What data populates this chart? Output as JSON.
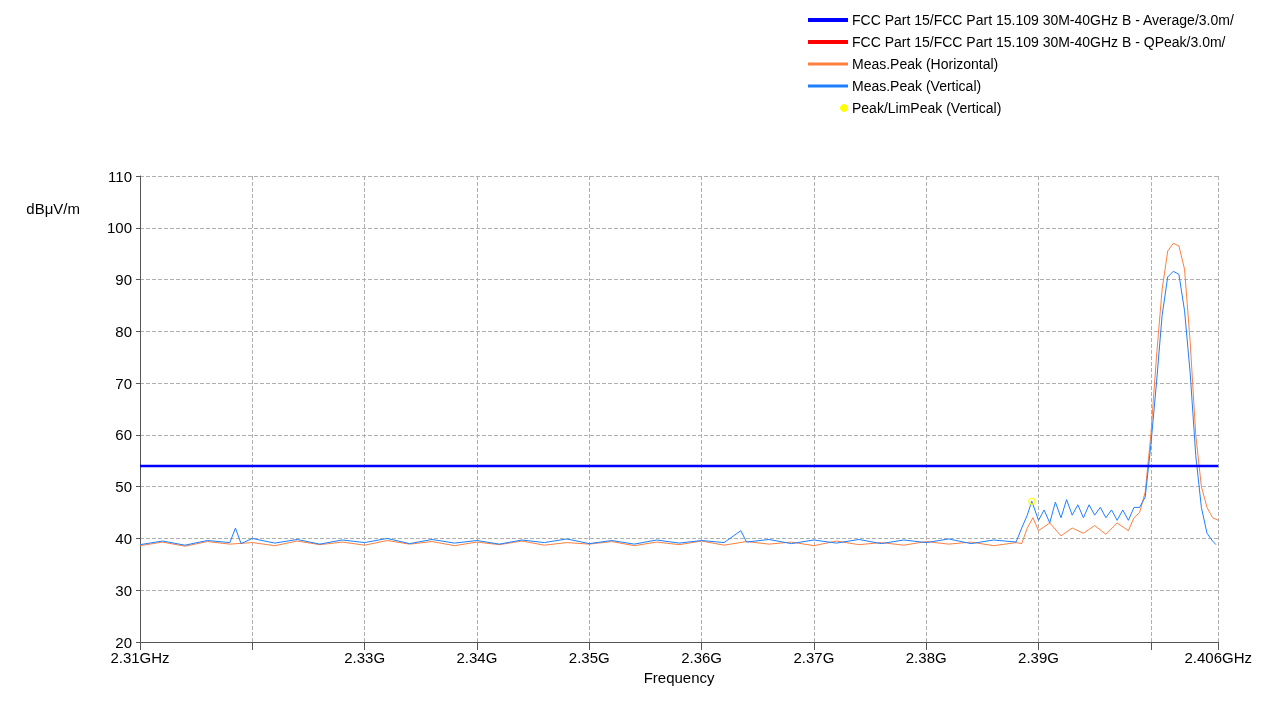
{
  "chart_data": {
    "type": "line",
    "xlabel": "Frequency",
    "ylabel": "dBμV/m",
    "xlim": [
      2.31,
      2.406
    ],
    "ylim": [
      20,
      110
    ],
    "xticks": [
      {
        "value": 2.31,
        "label": "2.31GHz"
      },
      {
        "value": 2.32,
        "label": null
      },
      {
        "value": 2.33,
        "label": "2.33G"
      },
      {
        "value": 2.34,
        "label": "2.34G"
      },
      {
        "value": 2.35,
        "label": "2.35G"
      },
      {
        "value": 2.36,
        "label": "2.36G"
      },
      {
        "value": 2.37,
        "label": "2.37G"
      },
      {
        "value": 2.38,
        "label": "2.38G"
      },
      {
        "value": 2.39,
        "label": "2.39G"
      },
      {
        "value": 2.4,
        "label": null
      },
      {
        "value": 2.406,
        "label": "2.406GHz"
      }
    ],
    "yticks": [
      20,
      30,
      40,
      50,
      60,
      70,
      80,
      90,
      100,
      110
    ],
    "grid": true,
    "legend": "top right",
    "marker": "none",
    "line_style": "solid",
    "series": [
      {
        "name": "FCC Part 15/FCC Part 15.109 30M-40GHz B - Average/3.0m/",
        "color": "#0000ff",
        "x": [
          2.31,
          2.406
        ],
        "values": [
          54,
          54
        ]
      },
      {
        "name": "FCC Part 15/FCC Part 15.109 30M-40GHz B - QPeak/3.0m/",
        "color": "#ff0000"
      },
      {
        "name": "Meas.Peak (Horizontal)",
        "color": "#ff7f3f",
        "x": [
          2.31,
          2.312,
          2.314,
          2.316,
          2.318,
          2.32,
          2.322,
          2.324,
          2.326,
          2.328,
          2.33,
          2.332,
          2.334,
          2.336,
          2.338,
          2.34,
          2.342,
          2.344,
          2.346,
          2.348,
          2.35,
          2.352,
          2.354,
          2.356,
          2.358,
          2.36,
          2.362,
          2.364,
          2.366,
          2.368,
          2.37,
          2.372,
          2.374,
          2.376,
          2.378,
          2.38,
          2.382,
          2.384,
          2.386,
          2.388,
          2.3885,
          2.389,
          2.3895,
          2.39,
          2.391,
          2.392,
          2.393,
          2.394,
          2.395,
          2.396,
          2.397,
          2.398,
          2.3985,
          2.399,
          2.3995,
          2.4,
          2.4005,
          2.401,
          2.4015,
          2.402,
          2.4025,
          2.403,
          2.4035,
          2.404,
          2.4045,
          2.405,
          2.4055,
          2.406
        ],
        "values": [
          38.6,
          39.3,
          38.5,
          39.4,
          38.9,
          39.2,
          38.6,
          39.5,
          38.8,
          39.3,
          38.7,
          39.6,
          38.9,
          39.4,
          38.6,
          39.3,
          38.8,
          39.5,
          38.7,
          39.2,
          38.9,
          39.4,
          38.6,
          39.3,
          38.8,
          39.5,
          38.7,
          39.4,
          38.9,
          39.3,
          38.6,
          39.5,
          38.8,
          39.2,
          38.7,
          39.4,
          38.9,
          39.3,
          38.6,
          39.2,
          39,
          42,
          44,
          41.5,
          43,
          40.5,
          42,
          41,
          42.5,
          40.8,
          43,
          41.5,
          44,
          45,
          49,
          60,
          75,
          88,
          95.5,
          97,
          96.5,
          92,
          78,
          60,
          50,
          46,
          44,
          43.5
        ]
      },
      {
        "name": "Meas.Peak (Vertical)",
        "color": "#1e7fff",
        "x": [
          2.31,
          2.312,
          2.314,
          2.316,
          2.318,
          2.3185,
          2.319,
          2.32,
          2.322,
          2.324,
          2.326,
          2.328,
          2.33,
          2.332,
          2.334,
          2.336,
          2.338,
          2.34,
          2.342,
          2.344,
          2.346,
          2.348,
          2.35,
          2.352,
          2.354,
          2.356,
          2.358,
          2.36,
          2.362,
          2.3635,
          2.364,
          2.366,
          2.368,
          2.37,
          2.372,
          2.374,
          2.376,
          2.378,
          2.38,
          2.382,
          2.384,
          2.386,
          2.388,
          2.3885,
          2.389,
          2.3894,
          2.39,
          2.3905,
          2.391,
          2.3915,
          2.392,
          2.3925,
          2.393,
          2.3935,
          2.394,
          2.3945,
          2.395,
          2.3955,
          2.396,
          2.3965,
          2.397,
          2.3975,
          2.398,
          2.3985,
          2.399,
          2.3995,
          2.4,
          2.4005,
          2.401,
          2.4015,
          2.402,
          2.4025,
          2.403,
          2.4035,
          2.404,
          2.4045,
          2.405,
          2.4055,
          2.4058
        ],
        "values": [
          38.8,
          39.5,
          38.7,
          39.6,
          39.2,
          42,
          39,
          40,
          39.1,
          39.8,
          38.9,
          39.7,
          39.2,
          40,
          39,
          39.8,
          39.1,
          39.6,
          38.9,
          39.7,
          39.2,
          39.9,
          39,
          39.6,
          38.9,
          39.7,
          39.1,
          39.6,
          39.2,
          41.5,
          39.3,
          39.8,
          39,
          39.7,
          39.1,
          39.8,
          39,
          39.7,
          39.2,
          39.9,
          39,
          39.7,
          39.3,
          42,
          44.5,
          47.2,
          43.5,
          45.5,
          43,
          47,
          44,
          47.5,
          44.5,
          46.5,
          44,
          46.5,
          44.5,
          46,
          44,
          45.5,
          43.5,
          45.5,
          43.5,
          46,
          46,
          48,
          58,
          70,
          83,
          90.5,
          91.6,
          91,
          84,
          72,
          56,
          46,
          41,
          39.5,
          38.8
        ]
      },
      {
        "name": "Peak/LimPeak (Vertical)",
        "type": "scatter",
        "color": "#ffff00",
        "x": [
          2.3894
        ],
        "values": [
          47.2
        ]
      }
    ]
  }
}
